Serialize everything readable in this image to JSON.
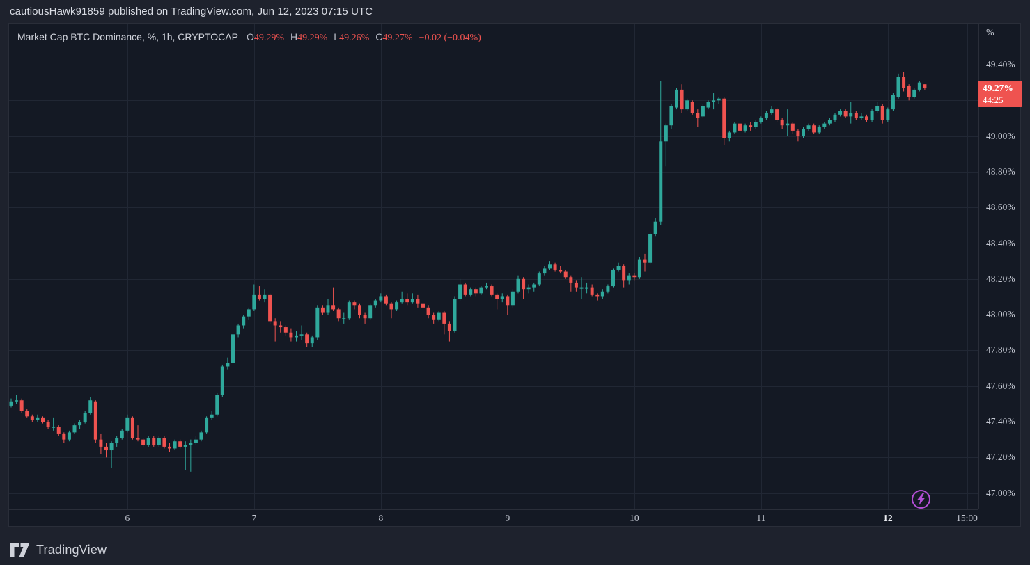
{
  "colors": {
    "up": "#2fa99c",
    "down": "#ef5350",
    "grid": "#212734",
    "panel_bg": "#141924",
    "page_bg": "#1e222d",
    "badge_bg": "#ef5350",
    "flash_purple": "#b44fd6"
  },
  "header": {
    "text": "cautiousHawk91859 published on TradingView.com, Jun 12, 2023 07:15 UTC"
  },
  "legend": {
    "title": "Market Cap BTC Dominance, %, 1h, CRYPTOCAP",
    "items": [
      {
        "label": "O",
        "value": "49.29%"
      },
      {
        "label": "H",
        "value": "49.29%"
      },
      {
        "label": "L",
        "value": "49.26%"
      },
      {
        "label": "C",
        "value": "49.27%"
      }
    ],
    "change": "−0.02 (−0.04%)"
  },
  "price_axis": {
    "unit": "%",
    "ticks": [
      {
        "label": "49.40%",
        "value": 49.4
      },
      {
        "label": "49.20%",
        "value": 49.2
      },
      {
        "label": "49.00%",
        "value": 49.0
      },
      {
        "label": "48.80%",
        "value": 48.8
      },
      {
        "label": "48.60%",
        "value": 48.6
      },
      {
        "label": "48.40%",
        "value": 48.4
      },
      {
        "label": "48.20%",
        "value": 48.2
      },
      {
        "label": "48.00%",
        "value": 48.0
      },
      {
        "label": "47.80%",
        "value": 47.8
      },
      {
        "label": "47.60%",
        "value": 47.6
      },
      {
        "label": "47.40%",
        "value": 47.4
      },
      {
        "label": "47.20%",
        "value": 47.2
      },
      {
        "label": "47.00%",
        "value": 47.0
      }
    ]
  },
  "time_axis": {
    "labels": [
      {
        "text": "6",
        "index": 22,
        "bold": false
      },
      {
        "text": "7",
        "index": 46,
        "bold": false
      },
      {
        "text": "8",
        "index": 70,
        "bold": false
      },
      {
        "text": "9",
        "index": 94,
        "bold": false
      },
      {
        "text": "10",
        "index": 118,
        "bold": false
      },
      {
        "text": "11",
        "index": 142,
        "bold": false
      },
      {
        "text": "12",
        "index": 166,
        "bold": true
      },
      {
        "text": "15:00",
        "index": 181,
        "bold": false
      }
    ]
  },
  "price_badge": {
    "price": "49.27%",
    "countdown": "44:25"
  },
  "footer": {
    "logo_text": "TradingView"
  },
  "chart_data": {
    "type": "candlestick",
    "title": "Market Cap BTC Dominance",
    "unit": "%",
    "interval": "1h",
    "exchange": "CRYPTOCAP",
    "y_axis": {
      "min": 47.0,
      "max": 49.4,
      "step": 0.2
    },
    "last_bar": {
      "open": 49.29,
      "high": 49.29,
      "low": 49.26,
      "close": 49.27,
      "change": -0.02,
      "change_pct": -0.04
    },
    "candles": [
      [
        47.49,
        47.53,
        47.48,
        47.51
      ],
      [
        47.51,
        47.55,
        47.5,
        47.52
      ],
      [
        47.52,
        47.53,
        47.45,
        47.46
      ],
      [
        47.46,
        47.47,
        47.42,
        47.43
      ],
      [
        47.43,
        47.44,
        47.4,
        47.41
      ],
      [
        47.41,
        47.44,
        47.4,
        47.42
      ],
      [
        47.42,
        47.43,
        47.39,
        47.4
      ],
      [
        47.4,
        47.41,
        47.36,
        47.37
      ],
      [
        47.37,
        47.42,
        47.35,
        47.37
      ],
      [
        47.37,
        47.38,
        47.32,
        47.33
      ],
      [
        47.33,
        47.34,
        47.28,
        47.3
      ],
      [
        47.3,
        47.35,
        47.29,
        47.34
      ],
      [
        47.34,
        47.39,
        47.33,
        47.38
      ],
      [
        47.38,
        47.41,
        47.36,
        47.4
      ],
      [
        47.4,
        47.46,
        47.39,
        47.45
      ],
      [
        47.45,
        47.54,
        47.44,
        47.52
      ],
      [
        47.51,
        47.52,
        47.28,
        47.3
      ],
      [
        47.3,
        47.33,
        47.22,
        47.26
      ],
      [
        47.26,
        47.28,
        47.2,
        47.24
      ],
      [
        47.24,
        47.29,
        47.14,
        47.28
      ],
      [
        47.28,
        47.32,
        47.26,
        47.31
      ],
      [
        47.31,
        47.36,
        47.3,
        47.35
      ],
      [
        47.35,
        47.44,
        47.34,
        47.42
      ],
      [
        47.42,
        47.43,
        47.3,
        47.31
      ],
      [
        47.31,
        47.38,
        47.29,
        47.3
      ],
      [
        47.3,
        47.31,
        47.26,
        47.27
      ],
      [
        47.27,
        47.32,
        47.26,
        47.31
      ],
      [
        47.31,
        47.32,
        47.26,
        47.27
      ],
      [
        47.27,
        47.32,
        47.26,
        47.31
      ],
      [
        47.31,
        47.32,
        47.25,
        47.26
      ],
      [
        47.26,
        47.28,
        47.23,
        47.25
      ],
      [
        47.25,
        47.3,
        47.24,
        47.29
      ],
      [
        47.29,
        47.3,
        47.25,
        47.26
      ],
      [
        47.26,
        47.29,
        47.13,
        47.27
      ],
      [
        47.27,
        47.3,
        47.12,
        47.28
      ],
      [
        47.28,
        47.32,
        47.27,
        47.3
      ],
      [
        47.3,
        47.35,
        47.29,
        47.34
      ],
      [
        47.34,
        47.43,
        47.33,
        47.42
      ],
      [
        47.42,
        47.46,
        47.41,
        47.44
      ],
      [
        47.44,
        47.56,
        47.43,
        47.55
      ],
      [
        47.55,
        47.72,
        47.54,
        47.71
      ],
      [
        47.71,
        47.76,
        47.69,
        47.73
      ],
      [
        47.73,
        47.9,
        47.72,
        47.89
      ],
      [
        47.89,
        47.95,
        47.87,
        47.94
      ],
      [
        47.94,
        48.0,
        47.92,
        47.99
      ],
      [
        47.99,
        48.04,
        47.97,
        48.03
      ],
      [
        48.03,
        48.17,
        48.02,
        48.11
      ],
      [
        48.11,
        48.16,
        48.08,
        48.09
      ],
      [
        48.09,
        48.14,
        48.07,
        48.11
      ],
      [
        48.11,
        48.12,
        47.95,
        47.96
      ],
      [
        47.96,
        47.98,
        47.85,
        47.94
      ],
      [
        47.94,
        47.96,
        47.9,
        47.93
      ],
      [
        47.93,
        47.94,
        47.88,
        47.9
      ],
      [
        47.9,
        47.92,
        47.85,
        47.87
      ],
      [
        47.87,
        47.91,
        47.85,
        47.88
      ],
      [
        47.88,
        47.94,
        47.86,
        47.89
      ],
      [
        47.89,
        47.9,
        47.82,
        47.84
      ],
      [
        47.84,
        47.88,
        47.82,
        47.87
      ],
      [
        47.87,
        48.05,
        47.86,
        48.04
      ],
      [
        48.04,
        48.05,
        48.0,
        48.01
      ],
      [
        48.01,
        48.09,
        48.0,
        48.05
      ],
      [
        48.05,
        48.15,
        48.02,
        48.03
      ],
      [
        48.03,
        48.04,
        47.96,
        47.98
      ],
      [
        47.98,
        48.01,
        47.95,
        47.98
      ],
      [
        47.98,
        48.08,
        47.97,
        48.07
      ],
      [
        48.07,
        48.08,
        48.03,
        48.05
      ],
      [
        48.05,
        48.06,
        47.98,
        48.0
      ],
      [
        48.0,
        48.01,
        47.95,
        47.98
      ],
      [
        47.98,
        48.06,
        47.97,
        48.05
      ],
      [
        48.05,
        48.09,
        48.04,
        48.08
      ],
      [
        48.08,
        48.12,
        48.07,
        48.1
      ],
      [
        48.1,
        48.11,
        48.05,
        48.06
      ],
      [
        48.06,
        48.07,
        47.98,
        48.03
      ],
      [
        48.03,
        48.08,
        48.02,
        48.07
      ],
      [
        48.07,
        48.13,
        48.06,
        48.09
      ],
      [
        48.09,
        48.12,
        48.05,
        48.07
      ],
      [
        48.07,
        48.12,
        48.06,
        48.09
      ],
      [
        48.09,
        48.11,
        48.04,
        48.06
      ],
      [
        48.06,
        48.07,
        48.02,
        48.04
      ],
      [
        48.04,
        48.05,
        47.98,
        48.0
      ],
      [
        48.0,
        48.01,
        47.95,
        47.97
      ],
      [
        47.97,
        48.02,
        47.96,
        48.01
      ],
      [
        48.01,
        48.02,
        47.89,
        47.95
      ],
      [
        47.95,
        47.96,
        47.85,
        47.91
      ],
      [
        47.91,
        48.1,
        47.9,
        48.09
      ],
      [
        48.09,
        48.2,
        48.08,
        48.17
      ],
      [
        48.17,
        48.18,
        48.1,
        48.11
      ],
      [
        48.11,
        48.15,
        48.1,
        48.14
      ],
      [
        48.14,
        48.15,
        48.1,
        48.12
      ],
      [
        48.12,
        48.16,
        48.11,
        48.15
      ],
      [
        48.15,
        48.18,
        48.14,
        48.16
      ],
      [
        48.16,
        48.17,
        48.1,
        48.11
      ],
      [
        48.11,
        48.12,
        48.03,
        48.09
      ],
      [
        48.09,
        48.12,
        48.07,
        48.1
      ],
      [
        48.1,
        48.11,
        48.0,
        48.05
      ],
      [
        48.05,
        48.14,
        48.04,
        48.13
      ],
      [
        48.13,
        48.22,
        48.12,
        48.2
      ],
      [
        48.2,
        48.21,
        48.09,
        48.14
      ],
      [
        48.14,
        48.17,
        48.12,
        48.15
      ],
      [
        48.15,
        48.18,
        48.13,
        48.17
      ],
      [
        48.17,
        48.24,
        48.16,
        48.23
      ],
      [
        48.23,
        48.27,
        48.22,
        48.26
      ],
      [
        48.26,
        48.3,
        48.25,
        48.28
      ],
      [
        48.28,
        48.29,
        48.24,
        48.25
      ],
      [
        48.25,
        48.27,
        48.23,
        48.24
      ],
      [
        48.24,
        48.25,
        48.2,
        48.21
      ],
      [
        48.21,
        48.22,
        48.13,
        48.18
      ],
      [
        48.18,
        48.19,
        48.13,
        48.15
      ],
      [
        48.15,
        48.21,
        48.09,
        48.15
      ],
      [
        48.15,
        48.18,
        48.12,
        48.15
      ],
      [
        48.15,
        48.17,
        48.1,
        48.11
      ],
      [
        48.11,
        48.12,
        48.08,
        48.1
      ],
      [
        48.1,
        48.14,
        48.09,
        48.13
      ],
      [
        48.13,
        48.17,
        48.12,
        48.16
      ],
      [
        48.16,
        48.26,
        48.15,
        48.25
      ],
      [
        48.25,
        48.29,
        48.24,
        48.27
      ],
      [
        48.27,
        48.28,
        48.15,
        48.19
      ],
      [
        48.19,
        48.23,
        48.17,
        48.22
      ],
      [
        48.22,
        48.23,
        48.19,
        48.21
      ],
      [
        48.21,
        48.32,
        48.2,
        48.31
      ],
      [
        48.31,
        48.34,
        48.24,
        48.29
      ],
      [
        48.29,
        48.46,
        48.28,
        48.45
      ],
      [
        48.45,
        48.54,
        48.44,
        48.52
      ],
      [
        48.52,
        49.31,
        48.5,
        48.97
      ],
      [
        48.97,
        49.07,
        48.83,
        49.06
      ],
      [
        49.06,
        49.18,
        49.04,
        49.17
      ],
      [
        49.16,
        49.27,
        49.15,
        49.26
      ],
      [
        49.26,
        49.29,
        49.13,
        49.15
      ],
      [
        49.15,
        49.21,
        49.14,
        49.2
      ],
      [
        49.19,
        49.2,
        49.12,
        49.13
      ],
      [
        49.13,
        49.15,
        49.05,
        49.1
      ],
      [
        49.11,
        49.18,
        49.1,
        49.17
      ],
      [
        49.16,
        49.2,
        49.15,
        49.19
      ],
      [
        49.19,
        49.24,
        49.15,
        49.2
      ],
      [
        49.2,
        49.22,
        49.18,
        49.21
      ],
      [
        49.21,
        49.22,
        48.95,
        48.99
      ],
      [
        48.99,
        49.03,
        48.97,
        49.02
      ],
      [
        49.02,
        49.08,
        49.01,
        49.07
      ],
      [
        49.07,
        49.12,
        49.02,
        49.03
      ],
      [
        49.03,
        49.07,
        49.02,
        49.06
      ],
      [
        49.06,
        49.08,
        49.03,
        49.05
      ],
      [
        49.05,
        49.09,
        49.04,
        49.08
      ],
      [
        49.08,
        49.11,
        49.07,
        49.1
      ],
      [
        49.1,
        49.14,
        49.09,
        49.13
      ],
      [
        49.13,
        49.17,
        49.12,
        49.15
      ],
      [
        49.15,
        49.16,
        49.08,
        49.09
      ],
      [
        49.09,
        49.1,
        49.04,
        49.06
      ],
      [
        49.06,
        49.15,
        49.0,
        49.07
      ],
      [
        49.07,
        49.08,
        49.01,
        49.03
      ],
      [
        49.03,
        49.04,
        48.97,
        49.0
      ],
      [
        49.0,
        49.05,
        48.99,
        49.04
      ],
      [
        49.04,
        49.07,
        49.03,
        49.06
      ],
      [
        49.06,
        49.07,
        49.01,
        49.02
      ],
      [
        49.02,
        49.06,
        49.01,
        49.05
      ],
      [
        49.05,
        49.08,
        49.04,
        49.07
      ],
      [
        49.07,
        49.1,
        49.06,
        49.09
      ],
      [
        49.09,
        49.13,
        49.08,
        49.12
      ],
      [
        49.12,
        49.15,
        49.11,
        49.14
      ],
      [
        49.14,
        49.15,
        49.1,
        49.11
      ],
      [
        49.11,
        49.19,
        49.07,
        49.13
      ],
      [
        49.13,
        49.14,
        49.09,
        49.1
      ],
      [
        49.1,
        49.13,
        49.09,
        49.11
      ],
      [
        49.11,
        49.12,
        49.08,
        49.09
      ],
      [
        49.09,
        49.15,
        49.08,
        49.14
      ],
      [
        49.14,
        49.19,
        49.13,
        49.17
      ],
      [
        49.17,
        49.18,
        49.07,
        49.09
      ],
      [
        49.09,
        49.16,
        49.08,
        49.15
      ],
      [
        49.15,
        49.24,
        49.14,
        49.23
      ],
      [
        49.22,
        49.35,
        49.21,
        49.33
      ],
      [
        49.33,
        49.36,
        49.25,
        49.27
      ],
      [
        49.28,
        49.29,
        49.2,
        49.22
      ],
      [
        49.22,
        49.27,
        49.21,
        49.26
      ],
      [
        49.26,
        49.31,
        49.25,
        49.3
      ],
      [
        49.29,
        49.29,
        49.26,
        49.27
      ]
    ]
  }
}
